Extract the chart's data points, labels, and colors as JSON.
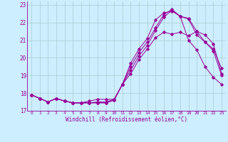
{
  "xlabel": "Windchill (Refroidissement éolien,°C)",
  "line_color": "#990099",
  "bg_color": "#cceeff",
  "grid_color": "#aacccc",
  "xlim": [
    -0.5,
    23.5
  ],
  "ylim": [
    17.0,
    23.2
  ],
  "yticks": [
    17,
    18,
    19,
    20,
    21,
    22,
    23
  ],
  "xticks": [
    0,
    1,
    2,
    3,
    4,
    5,
    6,
    7,
    8,
    9,
    10,
    11,
    12,
    13,
    14,
    15,
    16,
    17,
    18,
    19,
    20,
    21,
    22,
    23
  ],
  "lines": [
    [
      17.9,
      17.7,
      17.5,
      17.7,
      17.55,
      17.45,
      17.45,
      17.45,
      17.45,
      17.45,
      17.6,
      18.5,
      19.1,
      19.9,
      20.5,
      21.15,
      21.45,
      21.35,
      21.45,
      21.25,
      21.5,
      21.3,
      20.8,
      19.1
    ],
    [
      17.9,
      17.7,
      17.5,
      17.7,
      17.55,
      17.45,
      17.45,
      17.45,
      17.45,
      17.45,
      17.6,
      18.5,
      19.7,
      20.5,
      21.1,
      22.15,
      22.55,
      22.65,
      22.35,
      22.2,
      21.3,
      20.9,
      20.5,
      19.4
    ],
    [
      17.9,
      17.7,
      17.5,
      17.7,
      17.55,
      17.45,
      17.45,
      17.55,
      17.65,
      17.65,
      17.65,
      18.5,
      19.3,
      20.1,
      20.7,
      21.55,
      22.3,
      22.7,
      22.35,
      21.0,
      20.45,
      19.5,
      18.9,
      18.5
    ],
    [
      17.9,
      17.7,
      17.5,
      17.7,
      17.55,
      17.45,
      17.45,
      17.45,
      17.5,
      17.5,
      17.65,
      18.5,
      19.5,
      20.3,
      20.9,
      21.7,
      22.45,
      22.75,
      22.35,
      22.25,
      21.5,
      20.9,
      20.4,
      19.0
    ]
  ]
}
